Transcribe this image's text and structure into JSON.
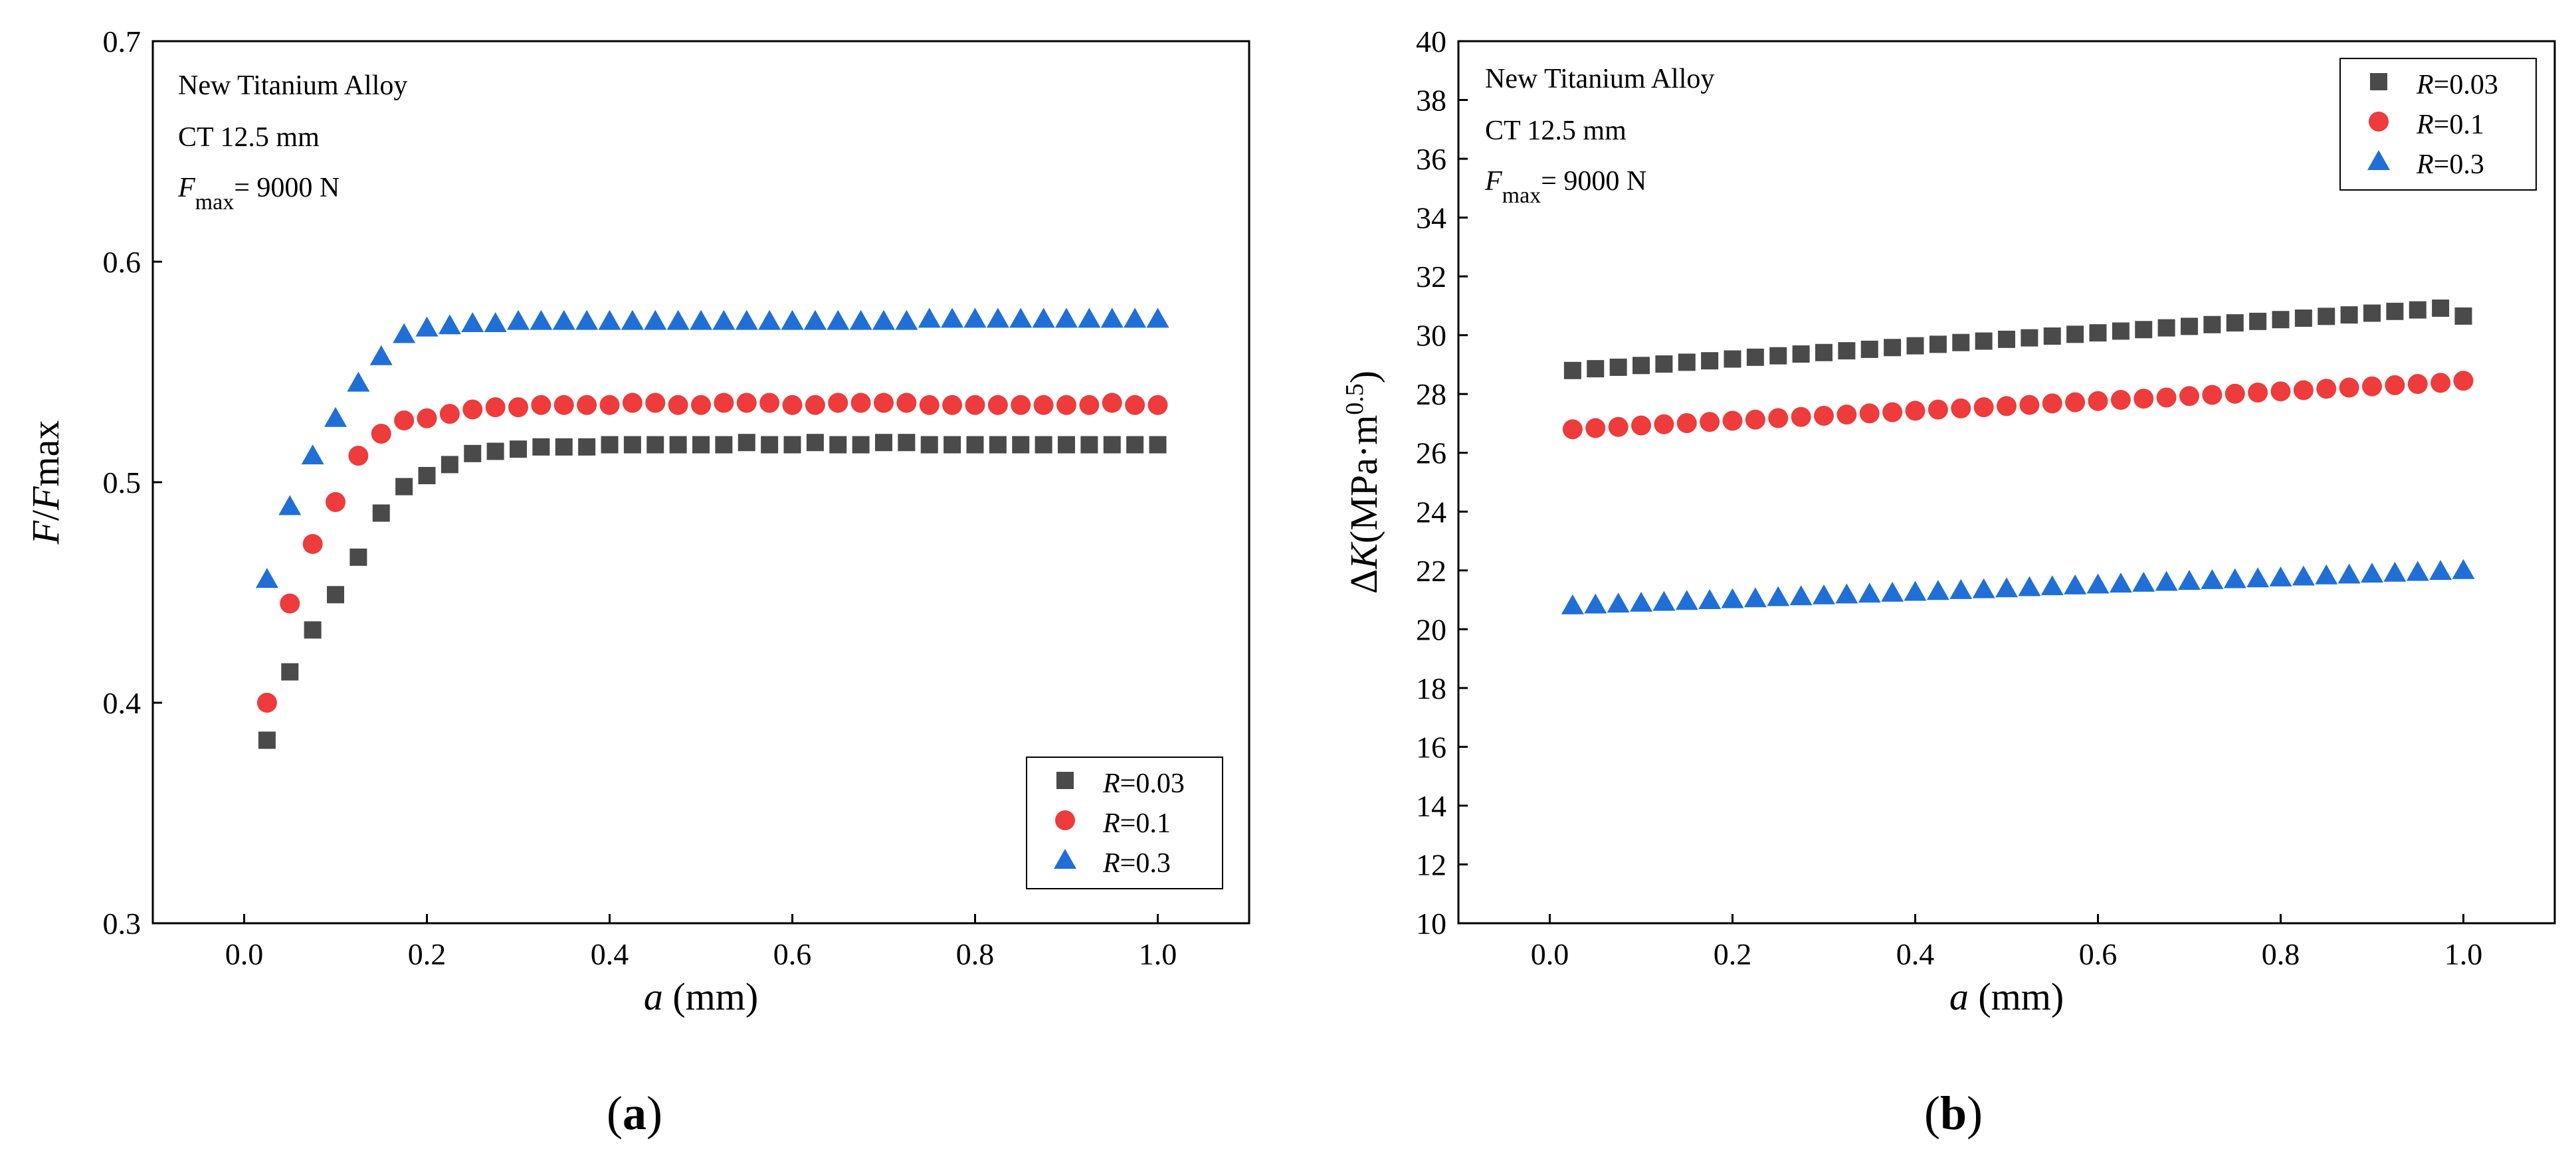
{
  "chart_data": [
    {
      "panel_label": "a",
      "type": "scatter",
      "xlabel_var": "a",
      "xlabel_unit": "(mm)",
      "ylabel_var1": "F",
      "ylabel_sep": "/",
      "ylabel_var2": "F",
      "ylabel_rest": "max",
      "xlim": [
        -0.1,
        1.1
      ],
      "ylim": [
        0.3,
        0.7
      ],
      "xticks": [
        0.0,
        0.2,
        0.4,
        0.6,
        0.8,
        1.0
      ],
      "xtick_labels": [
        "0.0",
        "0.2",
        "0.4",
        "0.6",
        "0.8",
        "1.0"
      ],
      "yticks": [
        0.3,
        0.4,
        0.5,
        0.6,
        0.7
      ],
      "ytick_labels": [
        "0.3",
        "0.4",
        "0.5",
        "0.6",
        "0.7"
      ],
      "annotations": {
        "material": "New Titanium Alloy",
        "specimen": "CT 12.5 mm",
        "force_sym": "F",
        "force_sub": "max",
        "force_val": "= 9000 N"
      },
      "legend_position": "bottom-right",
      "series": [
        {
          "name": "R=0.03",
          "label_var": "R",
          "label_val": "=0.03",
          "color": "#4a4a4a",
          "marker": "square",
          "x": [
            0.025,
            0.05,
            0.075,
            0.1,
            0.125,
            0.15,
            0.175,
            0.2,
            0.225,
            0.25,
            0.275,
            0.3,
            0.325,
            0.35,
            0.375,
            0.4,
            0.425,
            0.45,
            0.475,
            0.5,
            0.525,
            0.55,
            0.575,
            0.6,
            0.625,
            0.65,
            0.675,
            0.7,
            0.725,
            0.75,
            0.775,
            0.8,
            0.825,
            0.85,
            0.875,
            0.9,
            0.925,
            0.95,
            0.975,
            1.0
          ],
          "y": [
            0.383,
            0.414,
            0.433,
            0.449,
            0.466,
            0.486,
            0.498,
            0.503,
            0.508,
            0.513,
            0.514,
            0.515,
            0.516,
            0.516,
            0.516,
            0.517,
            0.517,
            0.517,
            0.517,
            0.517,
            0.517,
            0.518,
            0.517,
            0.517,
            0.518,
            0.517,
            0.517,
            0.518,
            0.518,
            0.517,
            0.517,
            0.517,
            0.517,
            0.517,
            0.517,
            0.517,
            0.517,
            0.517,
            0.517,
            0.517
          ]
        },
        {
          "name": "R=0.1",
          "label_var": "R",
          "label_val": "=0.1",
          "color": "#ee3b3b",
          "marker": "circle",
          "x": [
            0.025,
            0.05,
            0.075,
            0.1,
            0.125,
            0.15,
            0.175,
            0.2,
            0.225,
            0.25,
            0.275,
            0.3,
            0.325,
            0.35,
            0.375,
            0.4,
            0.425,
            0.45,
            0.475,
            0.5,
            0.525,
            0.55,
            0.575,
            0.6,
            0.625,
            0.65,
            0.675,
            0.7,
            0.725,
            0.75,
            0.775,
            0.8,
            0.825,
            0.85,
            0.875,
            0.9,
            0.925,
            0.95,
            0.975,
            1.0
          ],
          "y": [
            0.4,
            0.445,
            0.472,
            0.491,
            0.512,
            0.522,
            0.528,
            0.529,
            0.531,
            0.533,
            0.534,
            0.534,
            0.535,
            0.535,
            0.535,
            0.535,
            0.536,
            0.536,
            0.535,
            0.535,
            0.536,
            0.536,
            0.536,
            0.535,
            0.535,
            0.536,
            0.536,
            0.536,
            0.536,
            0.535,
            0.535,
            0.535,
            0.535,
            0.535,
            0.535,
            0.535,
            0.535,
            0.536,
            0.535,
            0.535
          ]
        },
        {
          "name": "R=0.3",
          "label_var": "R",
          "label_val": "=0.3",
          "color": "#1f6fd6",
          "marker": "triangle",
          "x": [
            0.025,
            0.05,
            0.075,
            0.1,
            0.125,
            0.15,
            0.175,
            0.2,
            0.225,
            0.25,
            0.275,
            0.3,
            0.325,
            0.35,
            0.375,
            0.4,
            0.425,
            0.45,
            0.475,
            0.5,
            0.525,
            0.55,
            0.575,
            0.6,
            0.625,
            0.65,
            0.675,
            0.7,
            0.725,
            0.75,
            0.775,
            0.8,
            0.825,
            0.85,
            0.875,
            0.9,
            0.925,
            0.95,
            0.975,
            1.0
          ],
          "y": [
            0.456,
            0.489,
            0.512,
            0.529,
            0.545,
            0.557,
            0.567,
            0.57,
            0.571,
            0.572,
            0.572,
            0.573,
            0.573,
            0.573,
            0.573,
            0.573,
            0.573,
            0.573,
            0.573,
            0.573,
            0.573,
            0.573,
            0.573,
            0.573,
            0.573,
            0.573,
            0.573,
            0.573,
            0.573,
            0.574,
            0.574,
            0.574,
            0.574,
            0.574,
            0.574,
            0.574,
            0.574,
            0.574,
            0.574,
            0.574
          ]
        }
      ]
    },
    {
      "panel_label": "b",
      "type": "scatter",
      "xlabel_var": "a",
      "xlabel_unit": "(mm)",
      "ylabel_delta": "Δ",
      "ylabel_var": "K",
      "ylabel_unit": "(MPa·m",
      "ylabel_exp": "0.5",
      "ylabel_close": ")",
      "xlim": [
        -0.1,
        1.1
      ],
      "ylim": [
        10,
        40
      ],
      "xticks": [
        0.0,
        0.2,
        0.4,
        0.6,
        0.8,
        1.0
      ],
      "xtick_labels": [
        "0.0",
        "0.2",
        "0.4",
        "0.6",
        "0.8",
        "1.0"
      ],
      "yticks": [
        10,
        12,
        14,
        16,
        18,
        20,
        22,
        24,
        26,
        28,
        30,
        32,
        34,
        36,
        38,
        40
      ],
      "ytick_labels": [
        "10",
        "12",
        "14",
        "16",
        "18",
        "20",
        "22",
        "24",
        "26",
        "28",
        "30",
        "32",
        "34",
        "36",
        "38",
        "40"
      ],
      "annotations": {
        "material": "New Titanium Alloy",
        "specimen": "CT 12.5 mm",
        "force_sym": "F",
        "force_sub": "max",
        "force_val": "= 9000 N"
      },
      "legend_position": "top-right",
      "series": [
        {
          "name": "R=0.03",
          "label_var": "R",
          "label_val": "=0.03",
          "color": "#4a4a4a",
          "marker": "square",
          "x": [
            0.025,
            0.05,
            0.075,
            0.1,
            0.125,
            0.15,
            0.175,
            0.2,
            0.225,
            0.25,
            0.275,
            0.3,
            0.325,
            0.35,
            0.375,
            0.4,
            0.425,
            0.45,
            0.475,
            0.5,
            0.525,
            0.55,
            0.575,
            0.6,
            0.625,
            0.65,
            0.675,
            0.7,
            0.725,
            0.75,
            0.775,
            0.8,
            0.825,
            0.85,
            0.875,
            0.9,
            0.925,
            0.95,
            0.975,
            1.0
          ],
          "y": [
            28.8,
            28.86,
            28.91,
            28.97,
            29.02,
            29.08,
            29.13,
            29.19,
            29.25,
            29.3,
            29.36,
            29.41,
            29.47,
            29.52,
            29.58,
            29.64,
            29.69,
            29.75,
            29.8,
            29.86,
            29.91,
            29.97,
            30.03,
            30.08,
            30.14,
            30.19,
            30.25,
            30.3,
            30.36,
            30.42,
            30.47,
            30.53,
            30.58,
            30.64,
            30.69,
            30.75,
            30.81,
            30.86,
            30.92,
            30.65
          ]
        },
        {
          "name": "R=0.1",
          "label_var": "R",
          "label_val": "=0.1",
          "color": "#ee3b3b",
          "marker": "circle",
          "x": [
            0.025,
            0.05,
            0.075,
            0.1,
            0.125,
            0.15,
            0.175,
            0.2,
            0.225,
            0.25,
            0.275,
            0.3,
            0.325,
            0.35,
            0.375,
            0.4,
            0.425,
            0.45,
            0.475,
            0.5,
            0.525,
            0.55,
            0.575,
            0.6,
            0.625,
            0.65,
            0.675,
            0.7,
            0.725,
            0.75,
            0.775,
            0.8,
            0.825,
            0.85,
            0.875,
            0.9,
            0.925,
            0.95,
            0.975,
            1.0
          ],
          "y": [
            26.8,
            26.84,
            26.88,
            26.93,
            26.97,
            27.01,
            27.05,
            27.09,
            27.13,
            27.18,
            27.22,
            27.26,
            27.3,
            27.34,
            27.38,
            27.43,
            27.47,
            27.51,
            27.55,
            27.59,
            27.63,
            27.68,
            27.72,
            27.76,
            27.8,
            27.84,
            27.88,
            27.93,
            27.97,
            28.01,
            28.05,
            28.09,
            28.13,
            28.18,
            28.22,
            28.26,
            28.3,
            28.34,
            28.38,
            28.45
          ]
        },
        {
          "name": "R=0.3",
          "label_var": "R",
          "label_val": "=0.3",
          "color": "#1f6fd6",
          "marker": "triangle",
          "x": [
            0.025,
            0.05,
            0.075,
            0.1,
            0.125,
            0.15,
            0.175,
            0.2,
            0.225,
            0.25,
            0.275,
            0.3,
            0.325,
            0.35,
            0.375,
            0.4,
            0.425,
            0.45,
            0.475,
            0.5,
            0.525,
            0.55,
            0.575,
            0.6,
            0.625,
            0.65,
            0.675,
            0.7,
            0.725,
            0.75,
            0.775,
            0.8,
            0.825,
            0.85,
            0.875,
            0.9,
            0.925,
            0.95,
            0.975,
            1.0
          ],
          "y": [
            20.8,
            20.83,
            20.86,
            20.89,
            20.92,
            20.95,
            20.98,
            21.01,
            21.04,
            21.08,
            21.11,
            21.14,
            21.17,
            21.2,
            21.23,
            21.26,
            21.29,
            21.32,
            21.35,
            21.38,
            21.42,
            21.45,
            21.48,
            21.51,
            21.54,
            21.57,
            21.6,
            21.63,
            21.66,
            21.69,
            21.72,
            21.75,
            21.78,
            21.82,
            21.85,
            21.88,
            21.91,
            21.94,
            21.97,
            22.0
          ]
        }
      ]
    }
  ]
}
